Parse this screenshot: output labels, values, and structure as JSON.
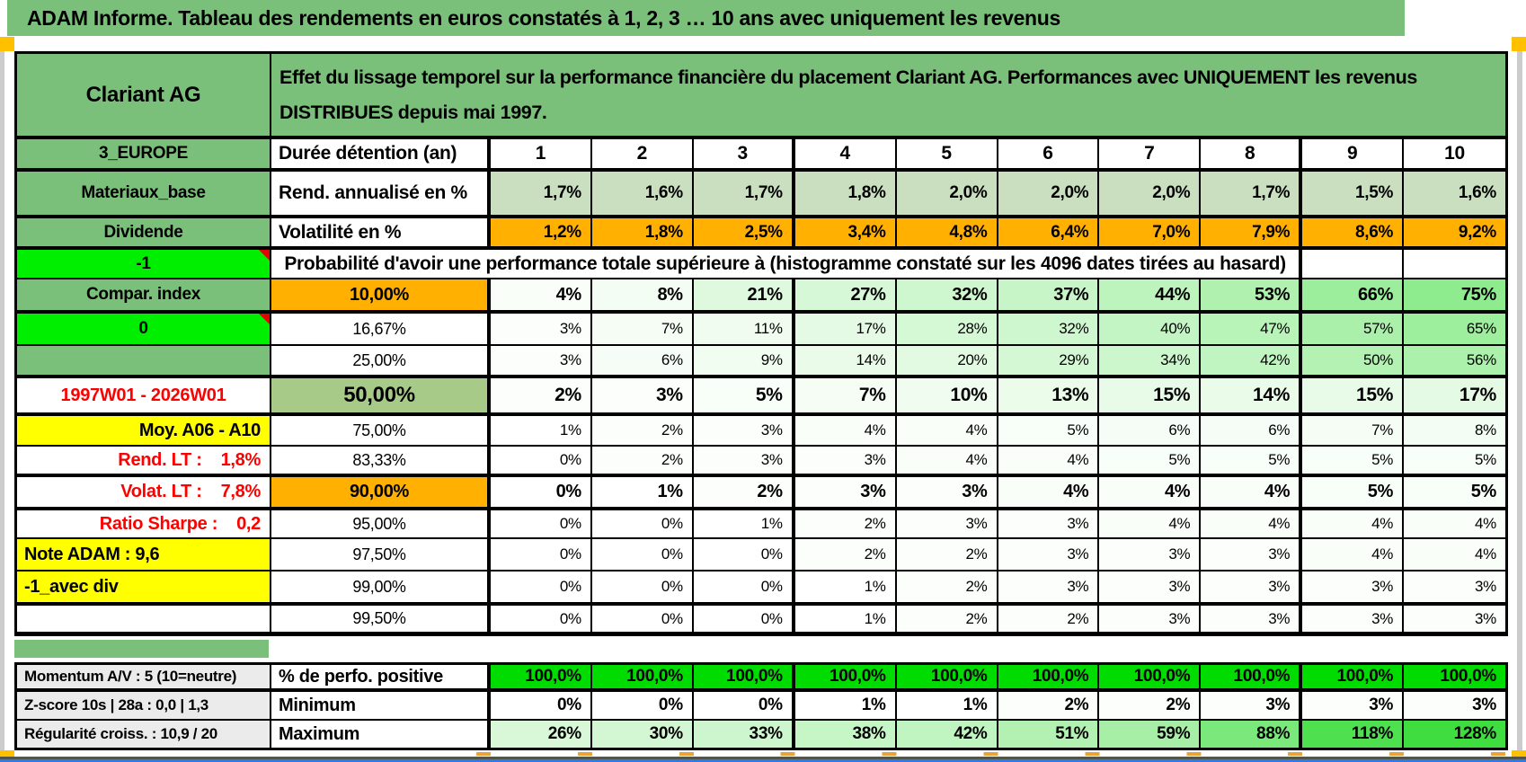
{
  "banner": {
    "title": "ADAM Informe. Tableau des rendements en euros constatés à 1, 2, 3 … 10 ans avec uniquement les revenus"
  },
  "colors": {
    "header_green": "#7ac07a",
    "bright_green": "#00ef00",
    "perfo_green": "#00db00",
    "orange": "#ffb000",
    "yellow": "#ffff00",
    "sage": "#c9dfc0",
    "mid_green_50": "#a8ca89",
    "gray_label": "#ebebeb",
    "red_text": "#ff0000",
    "page_marker": "#ffc000",
    "window_line_blue": "#2f7ae8"
  },
  "table": {
    "corner_label": "Clariant AG",
    "description_line1": "Effet du lissage temporel sur la performance financière du placement Clariant AG. Performances avec UNIQUEMENT les revenus",
    "description_line2": "DISTRIBUES depuis mai 1997.",
    "left_labels": [
      {
        "text": "3_EUROPE",
        "style": "green"
      },
      {
        "text": "Materiaux_base",
        "style": "green"
      },
      {
        "text": "Dividende",
        "style": "green"
      },
      {
        "text": "-1",
        "style": "bright",
        "note": true
      },
      {
        "text": "Compar. index",
        "style": "green"
      },
      {
        "text": "0",
        "style": "bright",
        "note": true
      },
      {
        "text": "",
        "style": "green"
      },
      {
        "text": "1997W01 - 2026W01",
        "style": "red-center"
      },
      {
        "text": "Moy. A06 - A10",
        "style": "yellow-right"
      },
      {
        "text": "Rend. LT :    1,8%",
        "style": "red-right"
      },
      {
        "text": "Volat. LT :    7,8%",
        "style": "red-right"
      },
      {
        "text": "Ratio Sharpe :    0,2",
        "style": "red-right"
      },
      {
        "text": "Note ADAM : 9,6",
        "style": "yellow-left"
      },
      {
        "text": "-1_avec div",
        "style": "yellow-left"
      },
      {
        "text": "",
        "style": "plain"
      }
    ],
    "duration_label": "Durée détention (an)",
    "durations": [
      "1",
      "2",
      "3",
      "4",
      "5",
      "6",
      "7",
      "8",
      "9",
      "10"
    ],
    "rend_label": "Rend. annualisé en %",
    "rend_values": [
      "1,7%",
      "1,6%",
      "1,7%",
      "1,8%",
      "2,0%",
      "2,0%",
      "2,0%",
      "1,7%",
      "1,5%",
      "1,6%"
    ],
    "volat_label": "Volatilité en %",
    "volat_values": [
      "1,2%",
      "1,8%",
      "2,5%",
      "3,4%",
      "4,8%",
      "6,4%",
      "7,0%",
      "7,9%",
      "8,6%",
      "9,2%"
    ],
    "probability_header": "Probabilité d'avoir une performance totale supérieure à (histogramme constaté sur les 4096 dates tirées au hasard)",
    "probability_rows": [
      {
        "threshold": "10,00%",
        "emphasis": "strong",
        "threshold_bg": "orange",
        "values": [
          4,
          8,
          21,
          27,
          32,
          37,
          44,
          53,
          66,
          75
        ]
      },
      {
        "threshold": "16,67%",
        "values": [
          3,
          7,
          11,
          17,
          28,
          32,
          40,
          47,
          57,
          65
        ]
      },
      {
        "threshold": "25,00%",
        "values": [
          3,
          6,
          9,
          14,
          20,
          29,
          34,
          42,
          50,
          56
        ]
      },
      {
        "threshold": "50,00%",
        "emphasis": "major",
        "threshold_bg": "mid-green",
        "values": [
          2,
          3,
          5,
          7,
          10,
          13,
          15,
          14,
          15,
          17
        ]
      },
      {
        "threshold": "75,00%",
        "values": [
          1,
          2,
          3,
          4,
          4,
          5,
          6,
          6,
          7,
          8
        ]
      },
      {
        "threshold": "83,33%",
        "values": [
          0,
          2,
          3,
          3,
          4,
          4,
          5,
          5,
          5,
          5
        ]
      },
      {
        "threshold": "90,00%",
        "emphasis": "strong",
        "threshold_bg": "orange",
        "values": [
          0,
          1,
          2,
          3,
          3,
          4,
          4,
          4,
          5,
          5
        ]
      },
      {
        "threshold": "95,00%",
        "values": [
          0,
          0,
          1,
          2,
          3,
          3,
          4,
          4,
          4,
          4
        ]
      },
      {
        "threshold": "97,50%",
        "values": [
          0,
          0,
          0,
          2,
          2,
          3,
          3,
          3,
          4,
          4
        ]
      },
      {
        "threshold": "99,00%",
        "values": [
          0,
          0,
          0,
          1,
          2,
          3,
          3,
          3,
          3,
          3
        ]
      },
      {
        "threshold": "99,50%",
        "values": [
          0,
          0,
          0,
          1,
          2,
          2,
          3,
          3,
          3,
          3
        ]
      }
    ]
  },
  "footer": {
    "left_labels": [
      "Momentum A/V : 5 (10=neutre)",
      "Z-score 10s | 28a : 0,0 | 1,3",
      "Régularité croiss. : 10,9 / 20"
    ],
    "rows": [
      {
        "label": "% de perfo. positive",
        "style": "perfo",
        "values": [
          "100,0%",
          "100,0%",
          "100,0%",
          "100,0%",
          "100,0%",
          "100,0%",
          "100,0%",
          "100,0%",
          "100,0%",
          "100,0%"
        ]
      },
      {
        "label": "Minimum",
        "style": "scale",
        "values": [
          0,
          0,
          0,
          1,
          1,
          2,
          2,
          3,
          3,
          3
        ]
      },
      {
        "label": "Maximum",
        "style": "scale",
        "values": [
          26,
          30,
          33,
          38,
          42,
          51,
          59,
          88,
          118,
          128
        ]
      }
    ]
  }
}
